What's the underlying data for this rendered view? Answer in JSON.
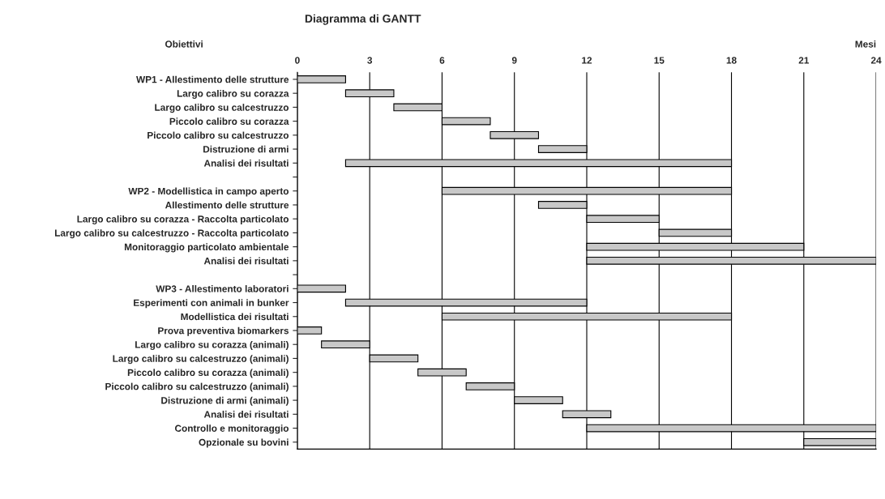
{
  "chart_data": {
    "type": "bar",
    "orientation": "horizontal",
    "title": "Diagramma di GANTT",
    "xlabel": "Mesi",
    "ylabel": "Obiettivi",
    "categories": [
      "WP1 - Allestimento delle strutture",
      "Largo calibro su corazza",
      "Largo calibro su calcestruzzo",
      "Piccolo calibro su corazza",
      "Piccolo calibro su calcestruzzo",
      "Distruzione di armi",
      "Analisi dei risultati",
      null,
      "WP2 - Modellistica in campo aperto",
      "Allestimento delle strutture",
      "Largo calibro su corazza - Raccolta particolato",
      "Largo calibro su calcestruzzo - Raccolta particolato",
      "Monitoraggio particolato ambientale",
      "Analisi dei risultati",
      null,
      "WP3 - Allestimento laboratori",
      "Esperimenti con animali in bunker",
      "Modellistica dei risultati",
      "Prova preventiva biomarkers",
      "Largo calibro su corazza (animali)",
      "Largo calibro su calcestruzzo (animali)",
      "Piccolo calibro su corazza (animali)",
      "Piccolo calibro su calcestruzzo (animali)",
      "Distruzione di armi (animali)",
      "Analisi dei risultati",
      "Controllo e monitoraggio",
      "Opzionale su bovini"
    ],
    "base": [
      0,
      2,
      4,
      6,
      8,
      10,
      2,
      null,
      6,
      10,
      12,
      15,
      12,
      12,
      null,
      0,
      2,
      6,
      0,
      1,
      3,
      5,
      7,
      9,
      11,
      12,
      21
    ],
    "values": [
      2,
      2,
      2,
      2,
      2,
      2,
      16,
      null,
      12,
      2,
      3,
      3,
      9,
      12,
      null,
      2,
      10,
      12,
      1,
      2,
      2,
      2,
      2,
      2,
      2,
      12,
      3
    ],
    "color": "#c8c8c8",
    "xlim": [
      0,
      24
    ],
    "xticks": [
      0,
      3,
      6,
      9,
      12,
      15,
      18,
      21,
      24
    ],
    "grid": "x"
  }
}
